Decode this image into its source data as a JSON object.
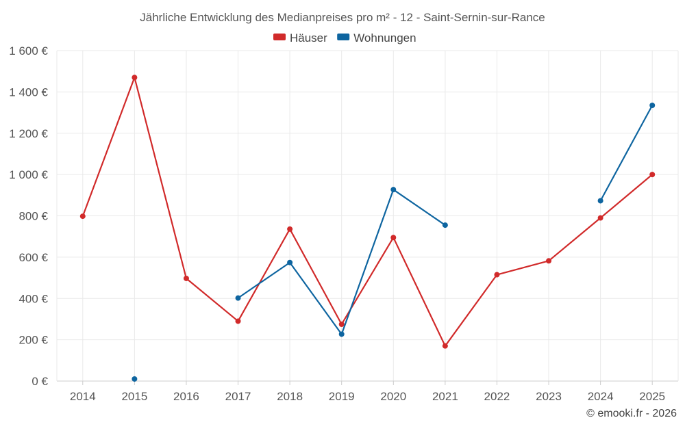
{
  "chart_data": {
    "type": "line",
    "title": "Jährliche Entwicklung des Medianpreises pro m² - 12 - Saint-Sernin-sur-Rance",
    "categories": [
      "2014",
      "2015",
      "2016",
      "2017",
      "2018",
      "2019",
      "2020",
      "2021",
      "2022",
      "2023",
      "2024",
      "2025"
    ],
    "ylim": [
      0,
      1600
    ],
    "yticks": [
      {
        "value": 0,
        "label": "0 €"
      },
      {
        "value": 200,
        "label": "200 €"
      },
      {
        "value": 400,
        "label": "400 €"
      },
      {
        "value": 600,
        "label": "600 €"
      },
      {
        "value": 800,
        "label": "800 €"
      },
      {
        "value": 1000,
        "label": "1 000 €"
      },
      {
        "value": 1200,
        "label": "1 200 €"
      },
      {
        "value": 1400,
        "label": "1 400 €"
      },
      {
        "value": 1600,
        "label": "1 600 €"
      }
    ],
    "grid": true,
    "legend_position": "top-center",
    "series": [
      {
        "name": "Häuser",
        "color": "#d12a2a",
        "values": [
          798,
          1470,
          497,
          290,
          736,
          275,
          695,
          170,
          515,
          582,
          790,
          1000
        ]
      },
      {
        "name": "Wohnungen",
        "color": "#0e65a0",
        "values": [
          null,
          10,
          null,
          402,
          574,
          227,
          927,
          755,
          null,
          null,
          873,
          1335
        ]
      }
    ]
  },
  "credit": "© emooki.fr - 2026"
}
